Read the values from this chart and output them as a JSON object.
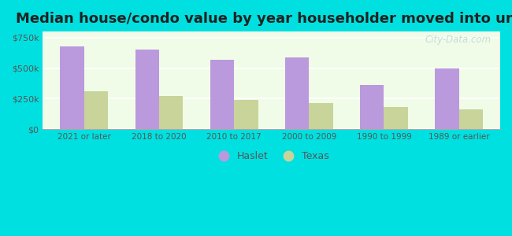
{
  "title": "Median house/condo value by year householder moved into unit",
  "categories": [
    "2021 or later",
    "2018 to 2020",
    "2010 to 2017",
    "2000 to 2009",
    "1990 to 1999",
    "1989 or earlier"
  ],
  "haslet_values": [
    680000,
    655000,
    568000,
    590000,
    360000,
    497000
  ],
  "texas_values": [
    310000,
    270000,
    240000,
    215000,
    185000,
    160000
  ],
  "haslet_color": "#bb99dd",
  "texas_color": "#c8d49a",
  "background_top": "#f0fce8",
  "background_bottom": "#e8f8f8",
  "outer_background": "#00e0e0",
  "ylim": [
    0,
    800000
  ],
  "yticks": [
    0,
    250000,
    500000,
    750000
  ],
  "ytick_labels": [
    "$0",
    "$250k",
    "$500k",
    "$750k"
  ],
  "legend_haslet": "Haslet",
  "legend_texas": "Texas",
  "title_fontsize": 13,
  "watermark": "City-Data.com"
}
